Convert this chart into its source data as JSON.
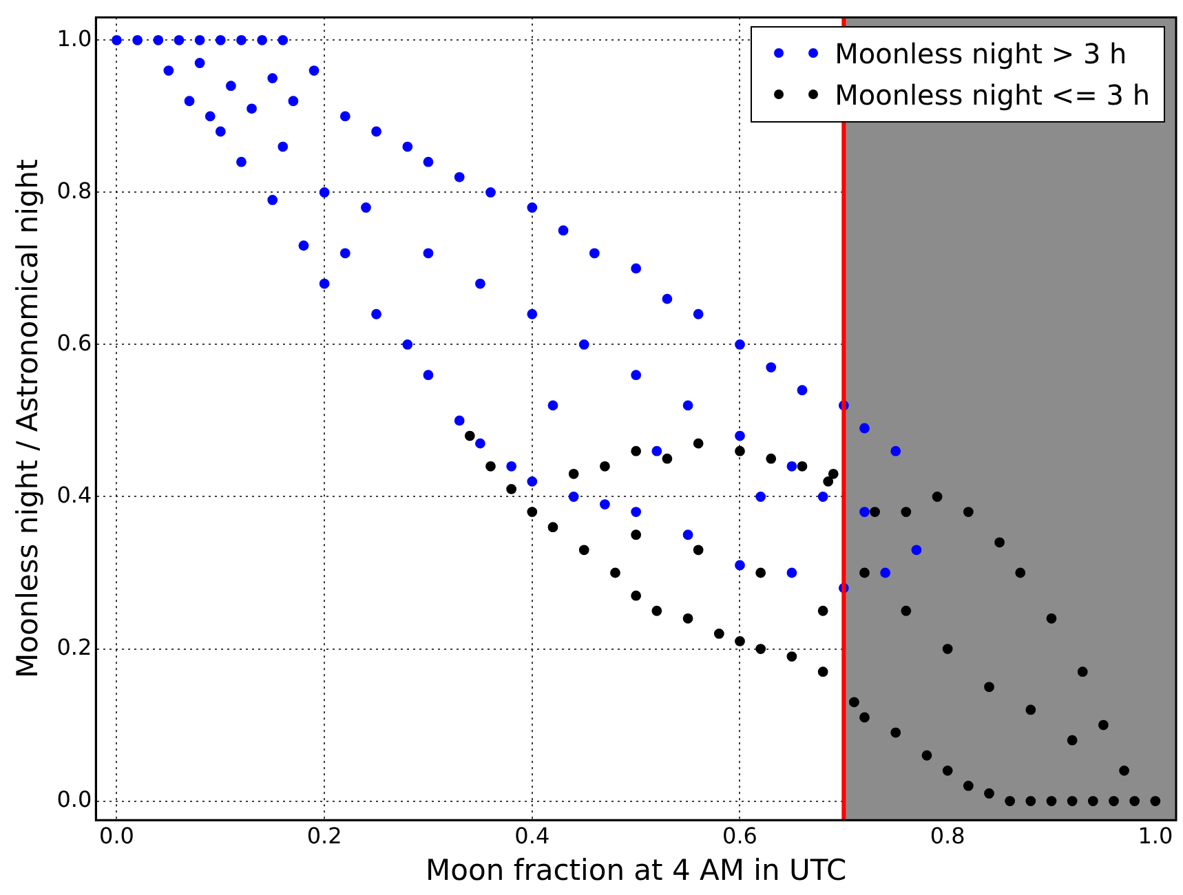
{
  "chart_data": {
    "type": "scatter",
    "xlabel": "Moon fraction at 4 AM in UTC",
    "ylabel": "Moonless night / Astronomical night",
    "xlim": [
      -0.02,
      1.02
    ],
    "ylim": [
      -0.025,
      1.03
    ],
    "xticks": [
      {
        "value": 0,
        "label": "0.0"
      },
      {
        "value": 0.2,
        "label": "0.2"
      },
      {
        "value": 0.4,
        "label": "0.4"
      },
      {
        "value": 0.6,
        "label": "0.6"
      },
      {
        "value": 0.8,
        "label": "0.8"
      },
      {
        "value": 1,
        "label": "1.0"
      }
    ],
    "yticks": [
      {
        "value": 0,
        "label": "0.0"
      },
      {
        "value": 0.2,
        "label": "0.2"
      },
      {
        "value": 0.4,
        "label": "0.4"
      },
      {
        "value": 0.6,
        "label": "0.6"
      },
      {
        "value": 0.8,
        "label": "0.8"
      },
      {
        "value": 1,
        "label": "1.0"
      }
    ],
    "grid": true,
    "legend": "top right",
    "marker": "circle",
    "series": [
      {
        "name": "Moonless night > 3 h",
        "color": "#0000ff",
        "x": [
          0.0,
          0.02,
          0.04,
          0.06,
          0.08,
          0.1,
          0.12,
          0.14,
          0.16,
          0.05,
          0.07,
          0.09,
          0.1,
          0.12,
          0.15,
          0.18,
          0.2,
          0.08,
          0.11,
          0.13,
          0.15,
          0.17,
          0.19,
          0.22,
          0.25,
          0.28,
          0.3,
          0.33,
          0.36,
          0.4,
          0.43,
          0.46,
          0.5,
          0.53,
          0.56,
          0.6,
          0.63,
          0.66,
          0.7,
          0.72,
          0.75,
          0.2,
          0.22,
          0.25,
          0.28,
          0.3,
          0.33,
          0.35,
          0.38,
          0.4,
          0.44,
          0.47,
          0.5,
          0.55,
          0.6,
          0.65,
          0.7,
          0.74,
          0.77,
          0.16,
          0.24,
          0.3,
          0.35,
          0.4,
          0.45,
          0.5,
          0.55,
          0.6,
          0.65,
          0.68,
          0.72,
          0.42,
          0.52,
          0.62
        ],
        "values": [
          1.0,
          1.0,
          1.0,
          1.0,
          1.0,
          1.0,
          1.0,
          1.0,
          1.0,
          0.96,
          0.92,
          0.9,
          0.88,
          0.84,
          0.79,
          0.73,
          0.68,
          0.97,
          0.94,
          0.91,
          0.95,
          0.92,
          0.96,
          0.9,
          0.88,
          0.86,
          0.84,
          0.82,
          0.8,
          0.78,
          0.75,
          0.72,
          0.7,
          0.66,
          0.64,
          0.6,
          0.57,
          0.54,
          0.52,
          0.49,
          0.46,
          0.8,
          0.72,
          0.64,
          0.6,
          0.56,
          0.5,
          0.47,
          0.44,
          0.42,
          0.4,
          0.39,
          0.38,
          0.35,
          0.31,
          0.3,
          0.28,
          0.3,
          0.33,
          0.86,
          0.78,
          0.72,
          0.68,
          0.64,
          0.6,
          0.56,
          0.52,
          0.48,
          0.44,
          0.4,
          0.38,
          0.52,
          0.46,
          0.4
        ]
      },
      {
        "name": "Moonless night <= 3 h",
        "color": "#000000",
        "x": [
          0.34,
          0.36,
          0.38,
          0.4,
          0.42,
          0.45,
          0.48,
          0.5,
          0.52,
          0.55,
          0.58,
          0.6,
          0.62,
          0.65,
          0.68,
          0.71,
          0.72,
          0.75,
          0.78,
          0.8,
          0.82,
          0.84,
          0.86,
          0.88,
          0.9,
          0.92,
          0.94,
          0.96,
          0.98,
          1.0,
          0.44,
          0.47,
          0.5,
          0.53,
          0.56,
          0.6,
          0.63,
          0.66,
          0.69,
          0.685,
          0.73,
          0.76,
          0.79,
          0.82,
          0.85,
          0.87,
          0.9,
          0.93,
          0.95,
          0.97,
          0.5,
          0.56,
          0.62,
          0.68,
          0.72,
          0.76,
          0.8,
          0.84,
          0.88,
          0.92
        ],
        "values": [
          0.48,
          0.44,
          0.41,
          0.38,
          0.36,
          0.33,
          0.3,
          0.27,
          0.25,
          0.24,
          0.22,
          0.21,
          0.2,
          0.19,
          0.17,
          0.13,
          0.11,
          0.09,
          0.06,
          0.04,
          0.02,
          0.01,
          0.0,
          0.0,
          0.0,
          0.0,
          0.0,
          0.0,
          0.0,
          0.0,
          0.43,
          0.44,
          0.46,
          0.45,
          0.47,
          0.46,
          0.45,
          0.44,
          0.43,
          0.42,
          0.38,
          0.38,
          0.4,
          0.38,
          0.34,
          0.3,
          0.24,
          0.17,
          0.1,
          0.04,
          0.35,
          0.33,
          0.3,
          0.25,
          0.3,
          0.25,
          0.2,
          0.15,
          0.12,
          0.08
        ]
      }
    ],
    "ref_lines": [
      {
        "axis": "x",
        "value": 0.7,
        "color": "#ff0000"
      }
    ],
    "bands": [
      {
        "axis": "x",
        "from": 0.7,
        "to": 1.02,
        "color": "#8c8c8c"
      }
    ]
  }
}
